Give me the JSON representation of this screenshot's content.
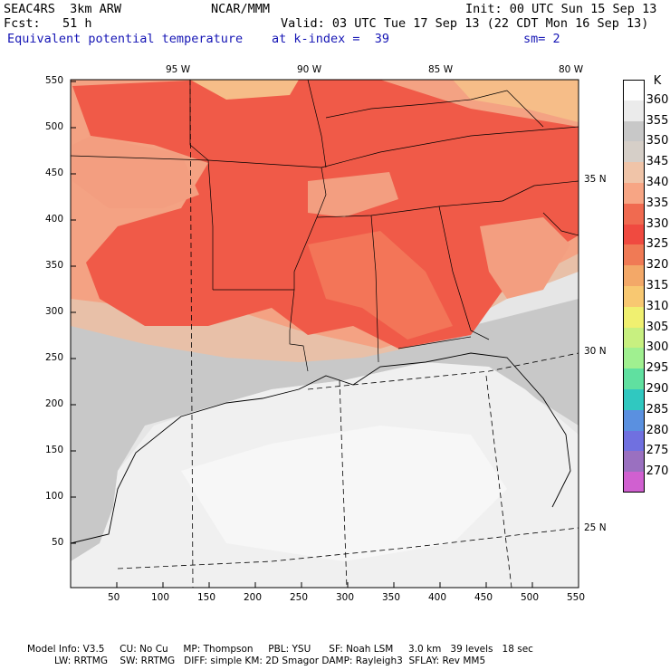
{
  "header": {
    "line1_left": "SEAC4RS  3km ARW",
    "line1_mid": "NCAR/MMM",
    "line1_right": "Init: 00 UTC Sun 15 Sep 13",
    "line2_left": "Fcst:   51 h",
    "line2_right": "Valid: 03 UTC Tue 17 Sep 13 (22 CDT Mon 16 Sep 13)",
    "line3_field": "Equivalent potential temperature",
    "line3_level": "at k-index =  39",
    "line3_smooth": "sm= 2"
  },
  "map": {
    "x_ticks": [
      "50",
      "100",
      "150",
      "200",
      "250",
      "300",
      "350",
      "400",
      "450",
      "500",
      "550"
    ],
    "y_ticks": [
      "550",
      "500",
      "450",
      "400",
      "350",
      "300",
      "250",
      "200",
      "150",
      "100",
      "50"
    ],
    "lon_labels": [
      "95 W",
      "90 W",
      "85 W",
      "80 W"
    ],
    "lat_labels": [
      "35 N",
      "30 N",
      "25 N"
    ]
  },
  "legend": {
    "unit": "K",
    "levels": [
      "360",
      "355",
      "350",
      "345",
      "340",
      "335",
      "330",
      "325",
      "320",
      "315",
      "310",
      "305",
      "300",
      "295",
      "290",
      "285",
      "280",
      "275",
      "270"
    ],
    "colors": [
      "#ffffff",
      "#ebebeb",
      "#c8c8c8",
      "#d6cfc8",
      "#f0c4a8",
      "#f7a584",
      "#f06a50",
      "#f04a40",
      "#f07a55",
      "#f3a868",
      "#f8c871",
      "#f0f070",
      "#c8f080",
      "#a0f090",
      "#60e0a0",
      "#30c8c0",
      "#5a90e0",
      "#7070e0",
      "#9a70c0",
      "#d060d0"
    ]
  },
  "footer": {
    "line1": "Model Info: V3.5     CU: No Cu     MP: Thompson     PBL: YSU      SF: Noah LSM     3.0 km   39 levels   18 sec",
    "line2": "         LW: RRTMG    SW: RRTMG   DIFF: simple KM: 2D Smagor DAMP: Rayleigh3  SFLAY: Rev MM5"
  }
}
